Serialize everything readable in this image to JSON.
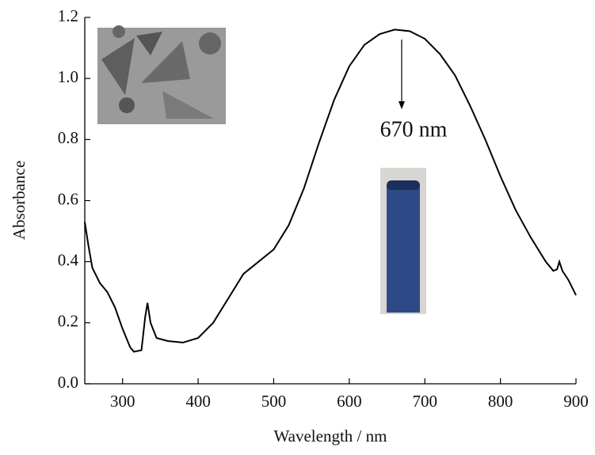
{
  "chart_data": {
    "type": "line",
    "x_label": "Wavelength / nm",
    "y_label": "Absorbance",
    "annotation": "670 nm",
    "color": "#000000",
    "x": [
      250,
      255,
      260,
      270,
      280,
      290,
      300,
      310,
      315,
      325,
      330,
      333,
      337,
      345,
      360,
      380,
      400,
      420,
      440,
      460,
      480,
      500,
      520,
      540,
      560,
      580,
      600,
      620,
      640,
      660,
      680,
      700,
      720,
      740,
      760,
      780,
      800,
      820,
      840,
      860,
      870,
      875,
      878,
      882,
      890,
      900
    ],
    "values": [
      0.53,
      0.45,
      0.38,
      0.33,
      0.3,
      0.25,
      0.18,
      0.12,
      0.105,
      0.11,
      0.22,
      0.265,
      0.2,
      0.15,
      0.14,
      0.135,
      0.15,
      0.2,
      0.28,
      0.36,
      0.4,
      0.44,
      0.52,
      0.64,
      0.79,
      0.93,
      1.04,
      1.11,
      1.145,
      1.16,
      1.155,
      1.13,
      1.08,
      1.01,
      0.91,
      0.8,
      0.68,
      0.57,
      0.48,
      0.4,
      0.37,
      0.375,
      0.4,
      0.37,
      0.34,
      0.29
    ],
    "xlim": [
      250,
      900
    ],
    "xticks": [
      300,
      400,
      500,
      600,
      700,
      800,
      900
    ],
    "ylim": [
      0,
      1.2
    ],
    "yticks": [
      {
        "value": 0,
        "label": "0.0"
      },
      0.2,
      0.4,
      0.6,
      0.8,
      {
        "value": 1,
        "label": "1.0"
      },
      1.2
    ]
  }
}
